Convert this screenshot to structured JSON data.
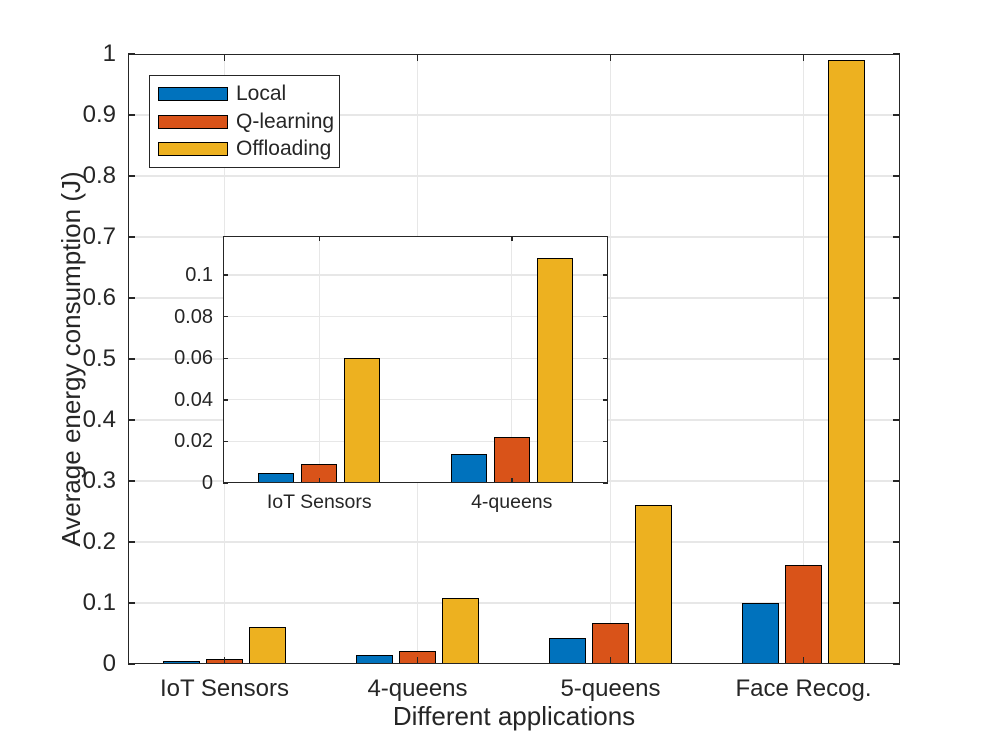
{
  "chart_data": {
    "type": "bar",
    "title": "",
    "xlabel": "Different applications",
    "ylabel": "Average energy consumption (J)",
    "categories": [
      "IoT Sensors",
      "4-queens",
      "5-queens",
      "Face Recog."
    ],
    "series": [
      {
        "name": "Local",
        "color": "#0072BD",
        "values": [
          0.005,
          0.014,
          0.042,
          0.1
        ]
      },
      {
        "name": "Q-learning",
        "color": "#D95319",
        "values": [
          0.009,
          0.022,
          0.068,
          0.163
        ]
      },
      {
        "name": "Offloading",
        "color": "#EDB120",
        "values": [
          0.06,
          0.108,
          0.26,
          0.99
        ]
      }
    ],
    "ylim": [
      0,
      1
    ],
    "yticks": [
      0,
      0.1,
      0.2,
      0.3,
      0.4,
      0.5,
      0.6,
      0.7,
      0.8,
      0.9,
      1
    ],
    "ytick_labels": [
      "0",
      "0.1",
      "0.2",
      "0.3",
      "0.4",
      "0.5",
      "0.6",
      "0.7",
      "0.8",
      "0.9",
      "1"
    ],
    "grid": true,
    "legend_position": "top-left",
    "inset": {
      "type": "bar",
      "categories": [
        "IoT Sensors",
        "4-queens"
      ],
      "series": [
        {
          "name": "Local",
          "color": "#0072BD",
          "values": [
            0.005,
            0.014
          ]
        },
        {
          "name": "Q-learning",
          "color": "#D95319",
          "values": [
            0.009,
            0.022
          ]
        },
        {
          "name": "Offloading",
          "color": "#EDB120",
          "values": [
            0.06,
            0.108
          ]
        }
      ],
      "ylim": [
        0,
        0.1188
      ],
      "yticks": [
        0,
        0.02,
        0.04,
        0.06,
        0.08,
        0.1
      ],
      "ytick_labels": [
        "0",
        "0.02",
        "0.04",
        "0.06",
        "0.08",
        "0.1"
      ],
      "grid": true
    },
    "colors": {
      "axis": "#262626",
      "grid": "#E7E7E7",
      "bar_edge": "#000000",
      "background": "#FFFFFF"
    }
  }
}
